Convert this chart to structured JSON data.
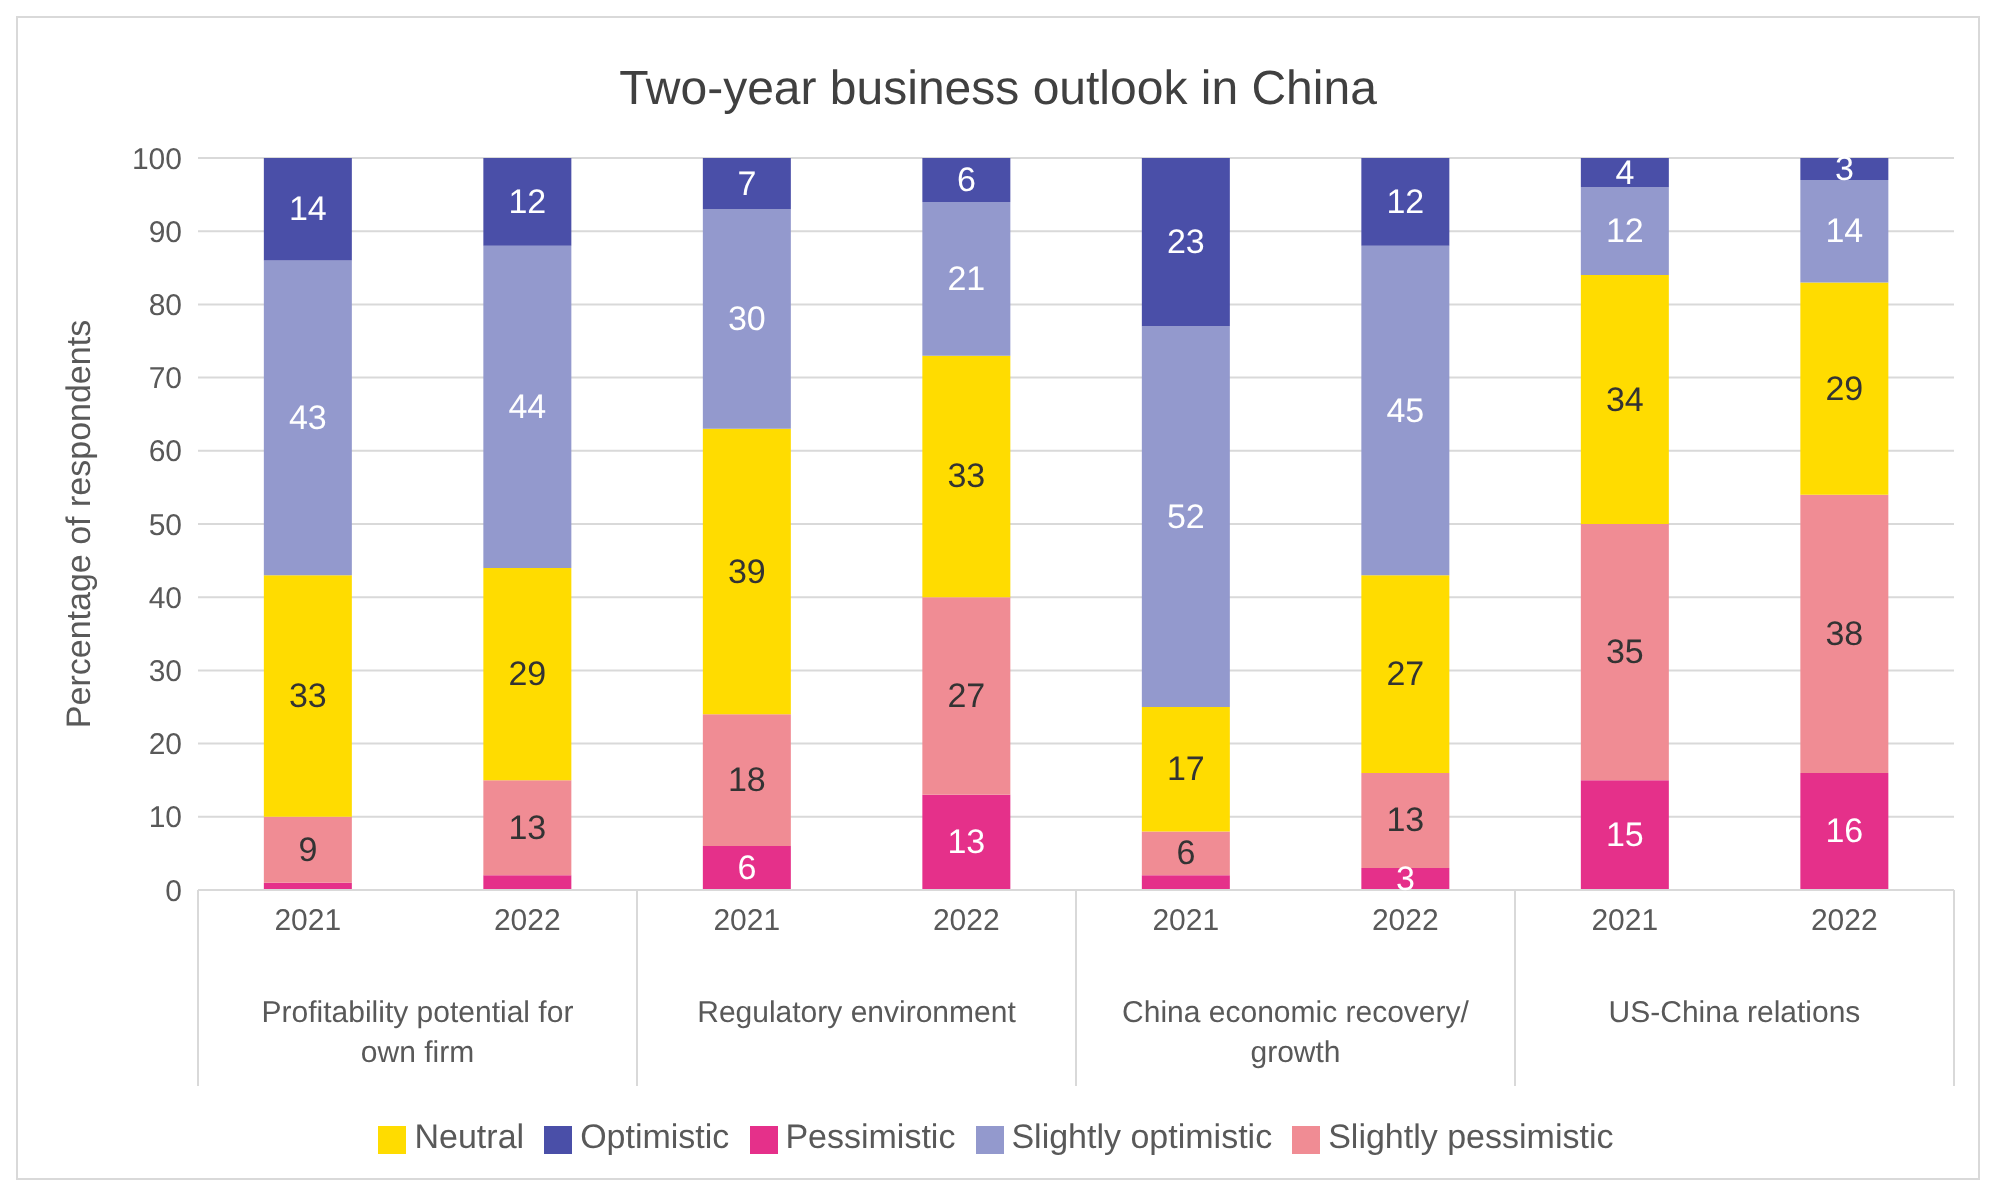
{
  "chart_data": {
    "type": "bar",
    "stacked": true,
    "title": "Two-year business outlook in China",
    "ylabel": "Percentage of respondents",
    "categories": [
      "2021",
      "2022",
      "2021",
      "2022",
      "2021",
      "2022",
      "2021",
      "2022"
    ],
    "annotations": [
      "Profitability potential for own firm",
      "Regulatory environment",
      "China economic recovery/ growth",
      "US-China relations"
    ],
    "ylim": [
      0,
      100
    ],
    "yticks": [
      0,
      10,
      20,
      30,
      40,
      50,
      60,
      70,
      80,
      90,
      100
    ],
    "grid": "y",
    "legend": "bottom",
    "series": [
      {
        "name": "Pessimistic",
        "color": "#e5308a",
        "values": [
          1,
          2,
          6,
          13,
          2,
          3,
          15,
          16
        ],
        "value_labels": [
          null,
          null,
          "6",
          "13",
          null,
          "3",
          "15",
          "16"
        ]
      },
      {
        "name": "Slightly pessimistic",
        "color": "#f08c94",
        "values": [
          9,
          13,
          18,
          27,
          6,
          13,
          35,
          38
        ],
        "value_labels": [
          "9",
          "13",
          "18",
          "27",
          "6",
          "13",
          "35",
          "38"
        ]
      },
      {
        "name": "Neutral",
        "color": "#ffdc00",
        "values": [
          33,
          29,
          39,
          33,
          17,
          27,
          34,
          29
        ],
        "value_labels": [
          "33",
          "29",
          "39",
          "33",
          "17",
          "27",
          "34",
          "29"
        ]
      },
      {
        "name": "Slightly optimistic",
        "color": "#9399cd",
        "values": [
          43,
          44,
          30,
          21,
          52,
          45,
          12,
          14
        ],
        "value_labels": [
          "43",
          "44",
          "30",
          "21",
          "52",
          "45",
          "12",
          "14"
        ]
      },
      {
        "name": "Optimistic",
        "color": "#4a4fa8",
        "values": [
          14,
          12,
          7,
          6,
          23,
          12,
          4,
          3
        ],
        "value_labels": [
          "14",
          "12",
          "7",
          "6",
          "23",
          "12",
          "4",
          "3"
        ]
      }
    ]
  }
}
